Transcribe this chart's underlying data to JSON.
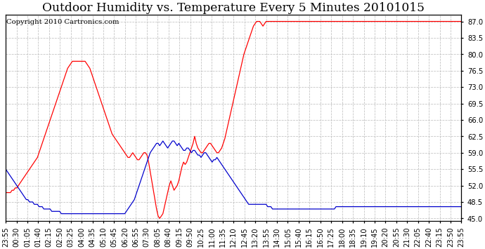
{
  "title": "Outdoor Humidity vs. Temperature Every 5 Minutes 20101015",
  "copyright": "Copyright 2010 Cartronics.com",
  "y_ticks": [
    45.0,
    48.5,
    52.0,
    55.5,
    59.0,
    62.5,
    66.0,
    69.5,
    73.0,
    76.5,
    80.0,
    83.5,
    87.0
  ],
  "ylim": [
    44.5,
    88.5
  ],
  "background_color": "#ffffff",
  "grid_color": "#c0c0c0",
  "line_color_red": "#ff0000",
  "line_color_blue": "#0000cc",
  "title_fontsize": 11,
  "copyright_fontsize": 6.5,
  "tick_fontsize": 6.5,
  "display_x_labels": [
    "23:55",
    "00:30",
    "01:05",
    "01:40",
    "02:15",
    "02:50",
    "03:25",
    "04:00",
    "04:35",
    "05:10",
    "05:45",
    "06:20",
    "06:55",
    "07:30",
    "08:05",
    "08:40",
    "09:15",
    "09:50",
    "10:25",
    "11:00",
    "11:35",
    "12:10",
    "12:45",
    "13:20",
    "13:55",
    "14:30",
    "15:05",
    "15:40",
    "16:15",
    "16:50",
    "17:25",
    "18:00",
    "18:35",
    "19:10",
    "19:45",
    "20:20",
    "20:55",
    "21:30",
    "22:05",
    "22:40",
    "23:15",
    "23:50",
    "23:55"
  ],
  "red_data": [
    50.5,
    50.5,
    50.5,
    50.5,
    51.0,
    51.0,
    51.5,
    51.5,
    52.0,
    52.5,
    53.0,
    53.5,
    54.0,
    54.5,
    55.0,
    55.5,
    56.0,
    56.5,
    57.0,
    57.5,
    58.0,
    59.0,
    60.0,
    61.0,
    62.0,
    63.0,
    64.0,
    65.0,
    66.0,
    67.0,
    68.0,
    69.0,
    70.0,
    71.0,
    72.0,
    73.0,
    74.0,
    75.0,
    76.0,
    77.0,
    77.5,
    78.0,
    78.5,
    78.5,
    78.5,
    78.5,
    78.5,
    78.5,
    78.5,
    78.5,
    78.5,
    78.0,
    77.5,
    77.0,
    76.0,
    75.0,
    74.0,
    73.0,
    72.0,
    71.0,
    70.0,
    69.0,
    68.0,
    67.0,
    66.0,
    65.0,
    64.0,
    63.0,
    62.5,
    62.0,
    61.5,
    61.0,
    60.5,
    60.0,
    59.5,
    59.0,
    58.5,
    58.0,
    58.0,
    58.5,
    59.0,
    58.5,
    58.0,
    57.5,
    57.5,
    58.0,
    58.5,
    59.0,
    59.0,
    58.5,
    57.0,
    55.0,
    53.0,
    51.0,
    49.0,
    47.0,
    45.5,
    45.0,
    45.5,
    46.0,
    47.5,
    49.0,
    50.5,
    52.0,
    53.0,
    52.0,
    51.0,
    51.5,
    52.0,
    53.0,
    54.5,
    56.0,
    57.0,
    56.5,
    57.0,
    58.0,
    59.0,
    60.0,
    61.0,
    62.5,
    61.0,
    60.0,
    59.5,
    59.0,
    59.0,
    59.5,
    60.0,
    60.5,
    61.0,
    61.0,
    60.5,
    60.0,
    59.5,
    59.0,
    59.0,
    59.5,
    60.0,
    61.0,
    62.0,
    63.5,
    65.0,
    66.5,
    68.0,
    69.5,
    71.0,
    72.5,
    74.0,
    75.5,
    77.0,
    78.5,
    80.0,
    81.0,
    82.0,
    83.0,
    84.0,
    85.0,
    86.0,
    86.5,
    87.0,
    87.0,
    87.0,
    86.5,
    86.0,
    86.5,
    87.0,
    87.0,
    87.0,
    87.0,
    87.0,
    87.0,
    87.0,
    87.0,
    87.0,
    87.0,
    87.0,
    87.0,
    87.0,
    87.0,
    87.0,
    87.0,
    87.0,
    87.0,
    87.0,
    87.0,
    87.0,
    87.0,
    87.0,
    87.0,
    87.0,
    87.0,
    87.0,
    87.0,
    87.0,
    87.0,
    87.0,
    87.0,
    87.0,
    87.0,
    87.0,
    87.0,
    87.0,
    87.0,
    87.0,
    87.0,
    87.0,
    87.0,
    87.0,
    87.0,
    87.0,
    87.0,
    87.0,
    87.0,
    87.0,
    87.0,
    87.0,
    87.0,
    87.0,
    87.0,
    87.0,
    87.0,
    87.0,
    87.0,
    87.0,
    87.0,
    87.0,
    87.0,
    87.0,
    87.0,
    87.0,
    87.0,
    87.0,
    87.0,
    87.0,
    87.0,
    87.0,
    87.0,
    87.0,
    87.0,
    87.0,
    87.0,
    87.0,
    87.0,
    87.0,
    87.0,
    87.0,
    87.0,
    87.0,
    87.0,
    87.0,
    87.0,
    87.0,
    87.0,
    87.0,
    87.0,
    87.0,
    87.0,
    87.0,
    87.0,
    87.0,
    87.0,
    87.0,
    87.0,
    87.0,
    87.0,
    87.0,
    87.0,
    87.0,
    87.0,
    87.0,
    87.0,
    87.0,
    87.0,
    87.0,
    87.0,
    87.0,
    87.0,
    87.0,
    87.0,
    87.0,
    87.0,
    87.0,
    87.0,
    87.0,
    87.0,
    87.0,
    87.0,
    87.0,
    87.0
  ],
  "blue_data": [
    55.5,
    55.0,
    54.5,
    54.0,
    53.5,
    53.0,
    52.5,
    52.0,
    51.5,
    51.0,
    50.5,
    50.0,
    49.5,
    49.0,
    49.0,
    48.5,
    48.5,
    48.5,
    48.0,
    48.0,
    48.0,
    47.5,
    47.5,
    47.5,
    47.0,
    47.0,
    47.0,
    47.0,
    47.0,
    46.5,
    46.5,
    46.5,
    46.5,
    46.5,
    46.5,
    46.0,
    46.0,
    46.0,
    46.0,
    46.0,
    46.0,
    46.0,
    46.0,
    46.0,
    46.0,
    46.0,
    46.0,
    46.0,
    46.0,
    46.0,
    46.0,
    46.0,
    46.0,
    46.0,
    46.0,
    46.0,
    46.0,
    46.0,
    46.0,
    46.0,
    46.0,
    46.0,
    46.0,
    46.0,
    46.0,
    46.0,
    46.0,
    46.0,
    46.0,
    46.0,
    46.0,
    46.0,
    46.0,
    46.0,
    46.0,
    46.0,
    46.5,
    47.0,
    47.5,
    48.0,
    48.5,
    49.0,
    50.0,
    51.0,
    52.0,
    53.0,
    54.0,
    55.0,
    56.0,
    57.0,
    58.0,
    59.0,
    59.5,
    60.0,
    60.5,
    61.0,
    61.0,
    60.5,
    61.0,
    61.5,
    61.0,
    60.5,
    60.0,
    60.5,
    61.0,
    61.5,
    61.5,
    61.0,
    60.5,
    61.0,
    60.5,
    60.0,
    59.5,
    59.5,
    60.0,
    60.0,
    59.5,
    59.0,
    59.5,
    59.5,
    59.0,
    58.5,
    58.5,
    58.0,
    58.5,
    59.0,
    59.0,
    58.5,
    58.0,
    57.5,
    57.0,
    57.5,
    57.5,
    58.0,
    57.5,
    57.0,
    56.5,
    56.0,
    55.5,
    55.0,
    54.5,
    54.0,
    53.5,
    53.0,
    52.5,
    52.0,
    51.5,
    51.0,
    50.5,
    50.0,
    49.5,
    49.0,
    48.5,
    48.0,
    48.0,
    48.0,
    48.0,
    48.0,
    48.0,
    48.0,
    48.0,
    48.0,
    48.0,
    48.0,
    48.0,
    47.5,
    47.5,
    47.5,
    47.0,
    47.0,
    47.0,
    47.0,
    47.0,
    47.0,
    47.0,
    47.0,
    47.0,
    47.0,
    47.0,
    47.0,
    47.0,
    47.0,
    47.0,
    47.0,
    47.0,
    47.0,
    47.0,
    47.0,
    47.0,
    47.0,
    47.0,
    47.0,
    47.0,
    47.0,
    47.0,
    47.0,
    47.0,
    47.0,
    47.0,
    47.0,
    47.0,
    47.0,
    47.0,
    47.0,
    47.0,
    47.0,
    47.0,
    47.0,
    47.5,
    47.5,
    47.5,
    47.5,
    47.5,
    47.5,
    47.5,
    47.5,
    47.5,
    47.5,
    47.5,
    47.5,
    47.5,
    47.5,
    47.5,
    47.5,
    47.5,
    47.5,
    47.5,
    47.5,
    47.5,
    47.5,
    47.5,
    47.5,
    47.5,
    47.5,
    47.5,
    47.5,
    47.5,
    47.5,
    47.5,
    47.5,
    47.5,
    47.5,
    47.5,
    47.5,
    47.5,
    47.5,
    47.5,
    47.5,
    47.5,
    47.5,
    47.5,
    47.5,
    47.5,
    47.5,
    47.5,
    47.5,
    47.5,
    47.5,
    47.5,
    47.5,
    47.5,
    47.5,
    47.5,
    47.5,
    47.5,
    47.5,
    47.5,
    47.5,
    47.5,
    47.5,
    47.5,
    47.5,
    47.5,
    47.5,
    47.5,
    47.5,
    47.5,
    47.5,
    47.5,
    47.5,
    47.5,
    47.5,
    47.5,
    47.5,
    47.5,
    47.5,
    47.5,
    47.5
  ]
}
